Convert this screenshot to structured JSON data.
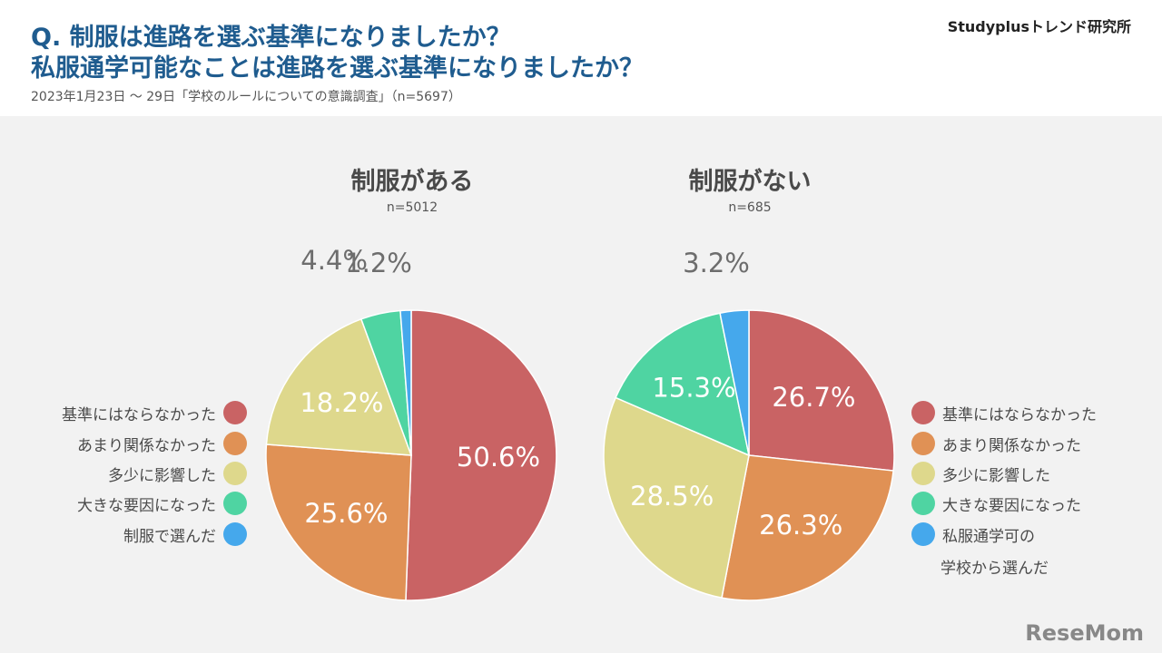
{
  "header": {
    "question_line1": "Q. 制服は進路を選ぶ基準になりましたか？",
    "question_line2": "私服通学可能なことは進路を選ぶ基準になりましたか？",
    "subtitle": "2023年1月23日 〜 29日「学校のルールについての意識調査」（n=5697）",
    "brand": "Studyplusトレンド研究所"
  },
  "logo": "ReseMom",
  "colors": {
    "red": "#c96364",
    "orange": "#e09155",
    "yellow": "#ded88c",
    "green": "#4fd4a2",
    "blue": "#45a8ec"
  },
  "legend_left": [
    "基準にはならなかった",
    "あまり関係なかった",
    "多少に影響した",
    "大きな要因になった",
    "制服で選んだ"
  ],
  "legend_right": [
    "基準にはならなかった",
    "あまり関係なかった",
    "多少に影響した",
    "大きな要因になった",
    "私服通学可の"
  ],
  "legend_right_extra": "学校から選んだ",
  "chart_data": [
    {
      "type": "pie",
      "title": "制服がある",
      "n_label": "n=5012",
      "slices": [
        {
          "label": "基準にはならなかった",
          "value": 50.6,
          "text": "50.6%"
        },
        {
          "label": "あまり関係なかった",
          "value": 25.6,
          "text": "25.6%"
        },
        {
          "label": "多少に影響した",
          "value": 18.2,
          "text": "18.2%"
        },
        {
          "label": "大きな要因になった",
          "value": 4.4,
          "text": "4.4%"
        },
        {
          "label": "制服で選んだ",
          "value": 1.2,
          "text": "1.2%"
        }
      ]
    },
    {
      "type": "pie",
      "title": "制服がない",
      "n_label": "n=685",
      "slices": [
        {
          "label": "基準にはならなかった",
          "value": 26.7,
          "text": "26.7%"
        },
        {
          "label": "あまり関係なかった",
          "value": 26.3,
          "text": "26.3%"
        },
        {
          "label": "多少に影響した",
          "value": 28.5,
          "text": "28.5%"
        },
        {
          "label": "大きな要因になった",
          "value": 15.3,
          "text": "15.3%"
        },
        {
          "label": "私服通学可の学校から選んだ",
          "value": 3.2,
          "text": "3.2%"
        }
      ]
    }
  ]
}
